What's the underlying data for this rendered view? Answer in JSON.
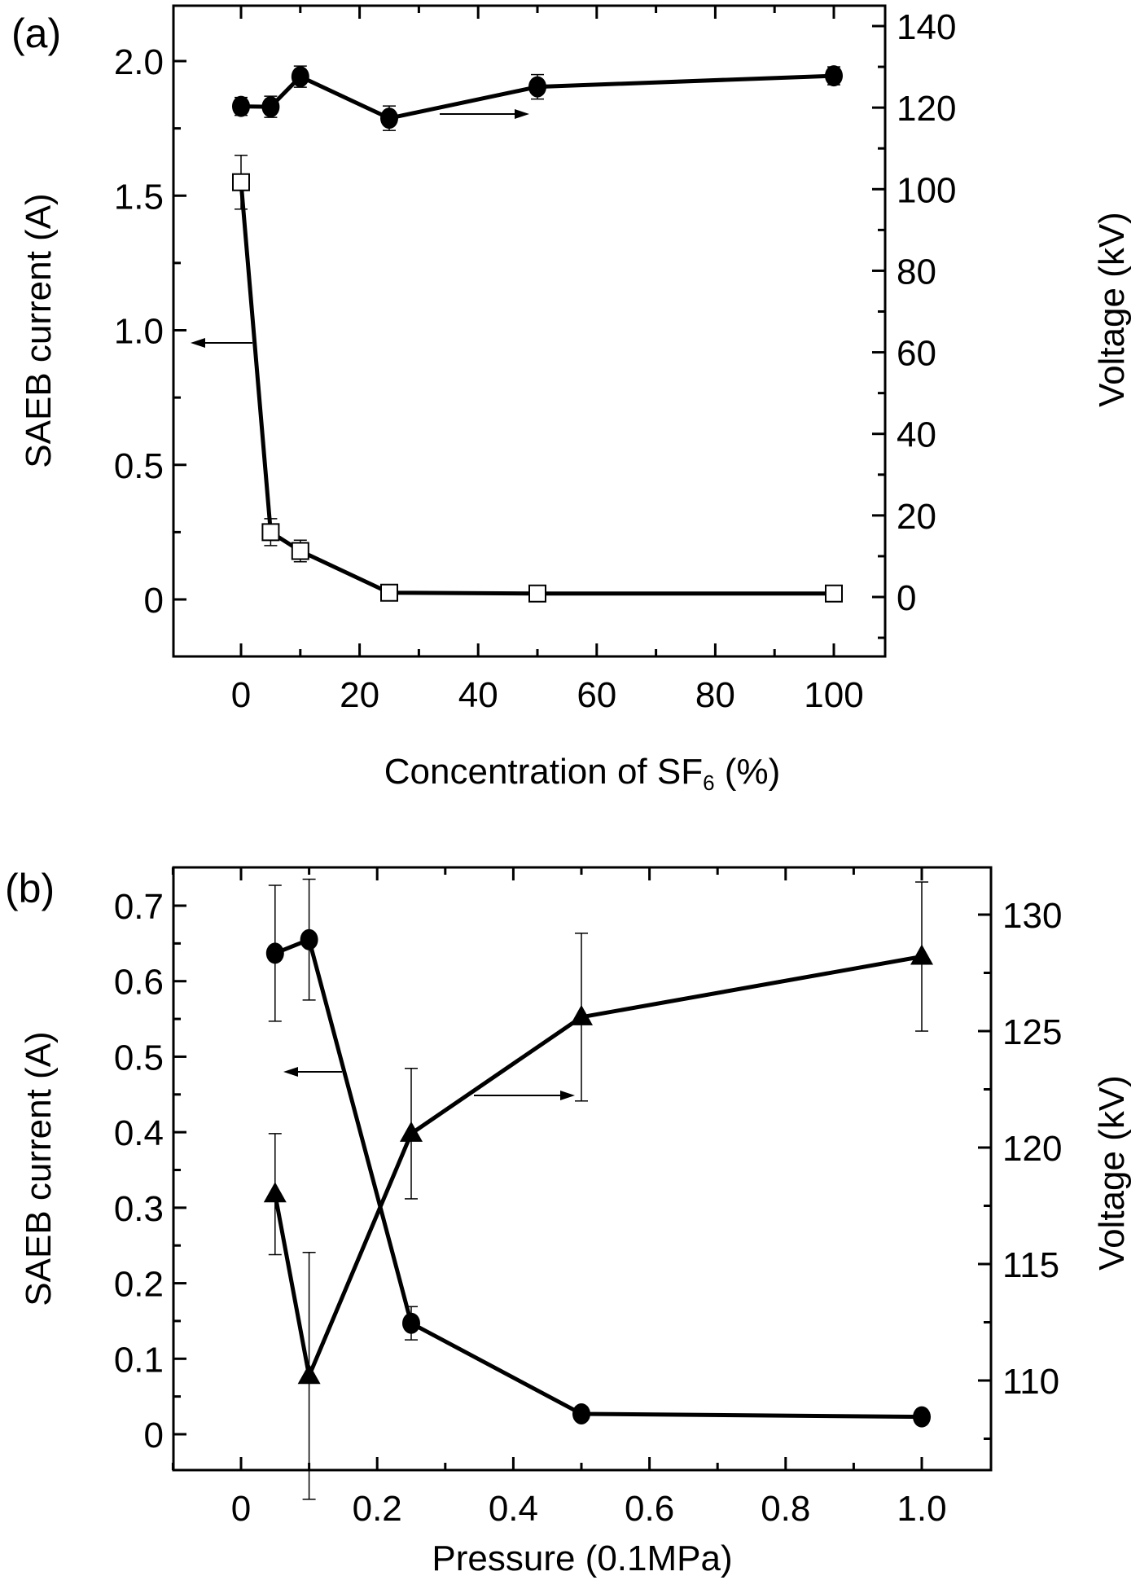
{
  "chart_data": [
    {
      "panel": "(a)",
      "type": "line",
      "xlabel": "Concentration of SF",
      "xlabel_sub": "6",
      "xlabel_suffix": " (%)",
      "ylabel_left": "SAEB current (A)",
      "ylabel_right": "Voltage (kV)",
      "xlim": [
        -8,
        110
      ],
      "ylim_left": [
        -0.2,
        2.2
      ],
      "ylim_right": [
        -15,
        145
      ],
      "x_ticks": [
        0,
        20,
        40,
        60,
        80,
        100
      ],
      "x_tick_labels": [
        "0",
        "20",
        "40",
        "60",
        "80",
        "100"
      ],
      "y_left_ticks": [
        0,
        0.5,
        1.0,
        1.5,
        2.0
      ],
      "y_left_tick_labels": [
        "0",
        "0.5",
        "1.0",
        "1.5",
        "2.0"
      ],
      "y_right_ticks": [
        0,
        20,
        40,
        60,
        80,
        100,
        120,
        140
      ],
      "y_right_tick_labels": [
        "0",
        "20",
        "40",
        "60",
        "80",
        "100",
        "120",
        "140"
      ],
      "series": [
        {
          "name": "SAEB current",
          "axis": "left",
          "marker": "open-square",
          "x": [
            0,
            5,
            10,
            25,
            50,
            100
          ],
          "values": [
            1.55,
            0.25,
            0.18,
            0.025,
            0.022,
            0.022
          ],
          "errors": [
            0.1,
            0.05,
            0.04,
            0.03,
            0.03,
            0.03
          ]
        },
        {
          "name": "Voltage",
          "axis": "right",
          "marker": "filled-circle",
          "x": [
            0,
            5,
            10,
            25,
            50,
            100
          ],
          "values": [
            120.3,
            120.2,
            127.6,
            117.4,
            125.1,
            127.8
          ],
          "errors": [
            2.2,
            2.6,
            2.6,
            3.0,
            3.0,
            2.2
          ]
        }
      ],
      "annotations": [
        {
          "type": "arrow",
          "direction": "left",
          "points_to": "left-axis",
          "label": "current series indicator"
        },
        {
          "type": "arrow",
          "direction": "right",
          "points_to": "right-axis",
          "label": "voltage series indicator"
        }
      ]
    },
    {
      "panel": "(b)",
      "type": "line",
      "xlabel": "Pressure (0.1MPa)",
      "ylabel_left": "SAEB current (A)",
      "ylabel_right": "Voltage (kV)",
      "xlim": [
        -0.1,
        1.1
      ],
      "ylim_left": [
        -0.045,
        0.76
      ],
      "ylim_right": [
        106.3,
        132.0
      ],
      "x_ticks": [
        0,
        0.2,
        0.4,
        0.6,
        0.8,
        1.0
      ],
      "x_tick_labels": [
        "0",
        "0.2",
        "0.4",
        "0.6",
        "0.8",
        "1.0"
      ],
      "y_left_ticks": [
        0,
        0.1,
        0.2,
        0.3,
        0.4,
        0.5,
        0.6,
        0.7
      ],
      "y_left_tick_labels": [
        "0",
        "0.1",
        "0.2",
        "0.3",
        "0.4",
        "0.5",
        "0.6",
        "0.7"
      ],
      "y_right_ticks": [
        110,
        115,
        120,
        125,
        130
      ],
      "y_right_tick_labels": [
        "110",
        "115",
        "120",
        "125",
        "130"
      ],
      "series": [
        {
          "name": "SAEB current",
          "axis": "left",
          "marker": "filled-circle",
          "x": [
            0.05,
            0.1,
            0.25,
            0.5,
            1.0
          ],
          "values": [
            0.637,
            0.655,
            0.147,
            0.027,
            0.023
          ],
          "errors": [
            0.09,
            0.08,
            0.022,
            0,
            0
          ]
        },
        {
          "name": "Voltage",
          "axis": "right",
          "marker": "filled-triangle",
          "x": [
            0.05,
            0.1,
            0.25,
            0.5,
            1.0
          ],
          "values": [
            118.0,
            110.2,
            120.6,
            125.6,
            128.2
          ],
          "errors": [
            2.6,
            5.3,
            2.8,
            3.6,
            3.2
          ]
        }
      ],
      "annotations": [
        {
          "type": "arrow",
          "direction": "left",
          "points_to": "left-axis",
          "label": "current series indicator"
        },
        {
          "type": "arrow",
          "direction": "right",
          "points_to": "right-axis",
          "label": "voltage series indicator"
        }
      ]
    }
  ]
}
